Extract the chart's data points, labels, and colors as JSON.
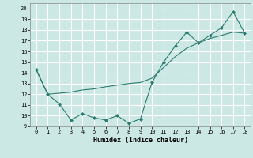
{
  "xlabel": "Humidex (Indice chaleur)",
  "ylabel": "",
  "bg_color": "#cce8e4",
  "line_color": "#2a7a70",
  "grid_color": "#ffffff",
  "xlim": [
    -0.5,
    18.5
  ],
  "ylim": [
    9,
    20.5
  ],
  "yticks": [
    9,
    10,
    11,
    12,
    13,
    14,
    15,
    16,
    17,
    18,
    19,
    20
  ],
  "xticks": [
    0,
    1,
    2,
    3,
    4,
    5,
    6,
    7,
    8,
    9,
    10,
    11,
    12,
    13,
    14,
    15,
    16,
    17,
    18
  ],
  "line1_x": [
    0,
    1,
    2,
    3,
    4,
    5,
    6,
    7,
    8,
    9,
    10,
    11,
    12,
    13,
    14,
    15,
    16,
    17,
    18
  ],
  "line1_y": [
    14.3,
    12.0,
    11.1,
    9.6,
    10.2,
    9.8,
    9.6,
    10.0,
    9.3,
    9.7,
    13.1,
    15.0,
    16.5,
    17.8,
    16.8,
    17.5,
    18.2,
    19.7,
    17.7
  ],
  "line2_x": [
    0,
    1,
    2,
    3,
    4,
    5,
    6,
    7,
    8,
    9,
    10,
    11,
    12,
    13,
    14,
    15,
    16,
    17,
    18
  ],
  "line2_y": [
    14.3,
    12.0,
    12.1,
    12.2,
    12.4,
    12.5,
    12.7,
    12.85,
    13.0,
    13.1,
    13.5,
    14.5,
    15.5,
    16.3,
    16.8,
    17.2,
    17.5,
    17.8,
    17.7
  ]
}
